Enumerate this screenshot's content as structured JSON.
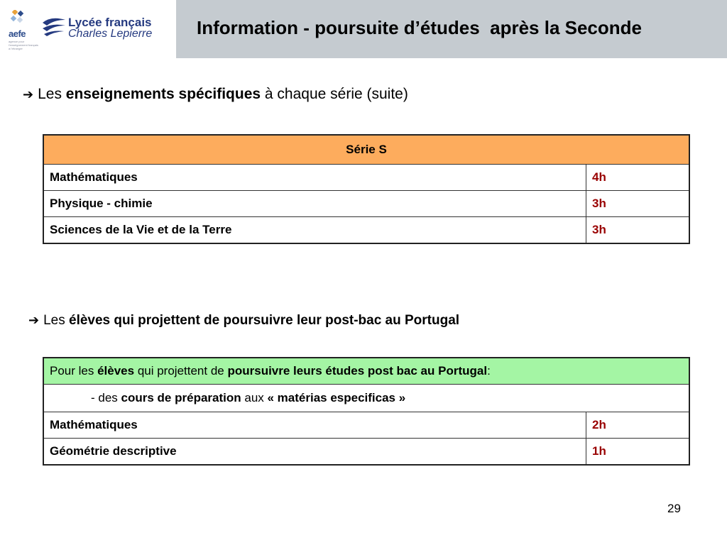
{
  "logo": {
    "aefe_word": "aefe",
    "aefe_tagline": "agence pour l'enseignement français à l'étranger",
    "school_line1": "Lycée français",
    "school_line2": "Charles Lepierre"
  },
  "title": "Information - poursuite d’études  après la Seconde",
  "bullet1": {
    "prefix": "Les ",
    "bold": "enseignements spécifiques",
    "suffix": " à chaque série (suite)"
  },
  "table1": {
    "header": "Série S",
    "rows": [
      {
        "subject": "Mathématiques",
        "hours": "4h"
      },
      {
        "subject": "Physique - chimie",
        "hours": "3h"
      },
      {
        "subject": "Sciences de la Vie et de la Terre",
        "hours": "3h"
      }
    ]
  },
  "bullet2": {
    "prefix": "Les ",
    "bold": "élèves qui projettent de poursuivre leur post-bac au Portugal"
  },
  "table2": {
    "header": {
      "p1": "Pour les ",
      "b1": "élèves",
      "p2": " qui projettent de ",
      "b2": "poursuivre leurs études post bac au Portugal",
      "p3": ":"
    },
    "subrow": {
      "p1": "- des ",
      "b1": "cours de préparation",
      "p2": " aux ",
      "b2": "« matérias especificas »"
    },
    "rows": [
      {
        "subject": "Mathématiques",
        "hours": "2h"
      },
      {
        "subject": "Géométrie descriptive",
        "hours": "1h"
      }
    ]
  },
  "page_number": "29",
  "colors": {
    "title_band": "#c5cbd0",
    "serie_header": "#fdac5d",
    "portugal_header": "#a4f5a4",
    "hours_text": "#990000"
  }
}
